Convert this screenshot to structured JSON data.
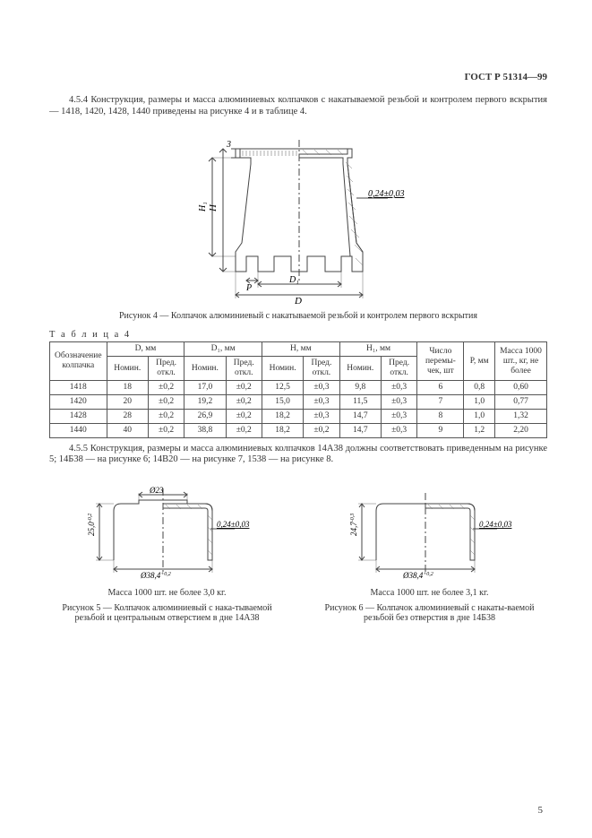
{
  "header": {
    "code": "ГОСТ Р 51314—99"
  },
  "para1": "4.5.4 Конструкция, размеры и масса алюминиевых колпачков с накатываемой резьбой и контролем первого вскрытия — 1418, 1420, 1428, 1440 приведены на рисунке 4 и в таблице 4.",
  "fig4": {
    "caption": "Рисунок 4 — Колпачок алюминиевый с накатываемой резьбой и контролем первого вскрытия",
    "dim_labels": {
      "three": "3",
      "H": "H",
      "H1": "H₁",
      "P": "P",
      "D1": "D₁",
      "D": "D",
      "wall": "0,24±0,03"
    },
    "stroke": "#444",
    "hatch": "#777"
  },
  "table4": {
    "label": "Т а б л и ц а   4",
    "headers": {
      "c1": "Обозначение колпачка",
      "c2": "D, мм",
      "c3": "D₁, мм",
      "c4": "H, мм",
      "c5": "H₁, мм",
      "c6": "Число перемы-чек, шт",
      "c7": "P, мм",
      "c8": "Масса 1000 шт., кг, не более",
      "sub_nom": "Номин.",
      "sub_tol": "Пред. откл."
    },
    "rows": [
      {
        "name": "1418",
        "Dn": "18",
        "Dt": "±0,2",
        "D1n": "17,0",
        "D1t": "±0,2",
        "Hn": "12,5",
        "Ht": "±0,3",
        "H1n": "9,8",
        "H1t": "±0,3",
        "per": "6",
        "P": "0,8",
        "m": "0,60"
      },
      {
        "name": "1420",
        "Dn": "20",
        "Dt": "±0,2",
        "D1n": "19,2",
        "D1t": "±0,2",
        "Hn": "15,0",
        "Ht": "±0,3",
        "H1n": "11,5",
        "H1t": "±0,3",
        "per": "7",
        "P": "1,0",
        "m": "0,77"
      },
      {
        "name": "1428",
        "Dn": "28",
        "Dt": "±0,2",
        "D1n": "26,9",
        "D1t": "±0,2",
        "Hn": "18,2",
        "Ht": "±0,3",
        "H1n": "14,7",
        "H1t": "±0,3",
        "per": "8",
        "P": "1,0",
        "m": "1,32"
      },
      {
        "name": "1440",
        "Dn": "40",
        "Dt": "±0,2",
        "D1n": "38,8",
        "D1t": "±0,2",
        "Hn": "18,2",
        "Ht": "±0,2",
        "H1n": "14,7",
        "H1t": "±0,3",
        "per": "9",
        "P": "1,2",
        "m": "2,20"
      }
    ]
  },
  "para2": "4.5.5 Конструкция, размеры и масса алюминиевых колпачков 14А38 должны соответствовать приведенным на рисунке 5; 14Б38 — на рисунке 6; 14В20 — на рисунке 7, 1538 — на рисунке 8.",
  "fig5": {
    "mass": "Масса 1000 шт. не более 3,0 кг.",
    "caption": "Рисунок 5 — Колпачок алюминиевый с нака-тываемой резьбой и центральным отверстием в дне 14А38",
    "dims": {
      "d23": "Ø23",
      "h": "25,0",
      "htol": "-0,2",
      "d38": "Ø38,4",
      "d38tol": "+0,2",
      "wall": "0,24±0,03"
    },
    "stroke": "#444"
  },
  "fig6": {
    "mass": "Масса 1000 шт. не более 3,1 кг.",
    "caption": "Рисунок 6 — Колпачок алюминиевый с накаты-ваемой резьбой без отверстия в дне 14Б38",
    "dims": {
      "h": "24,7",
      "htol": "-0,3",
      "d38": "Ø38,4",
      "d38tol": "+0,2",
      "wall": "0,24±0,03"
    },
    "stroke": "#444"
  },
  "page_number": "5"
}
